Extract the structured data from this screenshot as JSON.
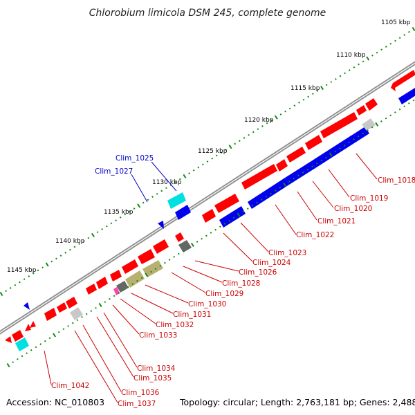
{
  "title": "Chlorobium limicola DSM 245, complete genome",
  "accession": "Accession: NC_010803",
  "topology": "Topology: circular; Length: 2,763,181 bp; Genes: 2,488",
  "colors": {
    "forward_gene": "#ff0000",
    "reverse_gene": "#0000ee",
    "trna": "#00e0e0",
    "pseudo": "#cccccc",
    "dark_gray": "#666666",
    "olive": "#b8b070",
    "pink": "#ff44aa",
    "tick": "#118811",
    "backbone": "#888888",
    "label_red": "#cc0000",
    "label_blue": "#0000cc"
  },
  "kbp_labels": [
    {
      "text": "1105 kbp"
    },
    {
      "text": "1110 kbp"
    },
    {
      "text": "1115 kbp"
    },
    {
      "text": "1120 kbp"
    },
    {
      "text": "1125 kbp"
    },
    {
      "text": "1130 kbp"
    },
    {
      "text": "1135 kbp"
    },
    {
      "text": "1140 kbp"
    },
    {
      "text": "1145 kbp"
    }
  ],
  "gene_labels": [
    {
      "text": "Clim_1018",
      "strand": "red"
    },
    {
      "text": "Clim_1019",
      "strand": "red"
    },
    {
      "text": "Clim_1020",
      "strand": "red"
    },
    {
      "text": "Clim_1021",
      "strand": "red"
    },
    {
      "text": "Clim_1022",
      "strand": "red"
    },
    {
      "text": "Clim_1023",
      "strand": "red"
    },
    {
      "text": "Clim_1024",
      "strand": "red"
    },
    {
      "text": "Clim_1026",
      "strand": "red"
    },
    {
      "text": "Clim_1028",
      "strand": "red"
    },
    {
      "text": "Clim_1029",
      "strand": "red"
    },
    {
      "text": "Clim_1030",
      "strand": "red"
    },
    {
      "text": "Clim_1031",
      "strand": "red"
    },
    {
      "text": "Clim_1032",
      "strand": "red"
    },
    {
      "text": "Clim_1033",
      "strand": "red"
    },
    {
      "text": "Clim_1034",
      "strand": "red"
    },
    {
      "text": "Clim_1035",
      "strand": "red"
    },
    {
      "text": "Clim_1036",
      "strand": "red"
    },
    {
      "text": "Clim_1037",
      "strand": "red"
    },
    {
      "text": "Clim_1042",
      "strand": "red"
    },
    {
      "text": "Clim_1025",
      "strand": "blue"
    },
    {
      "text": "Clim_1027",
      "strand": "blue"
    }
  ]
}
